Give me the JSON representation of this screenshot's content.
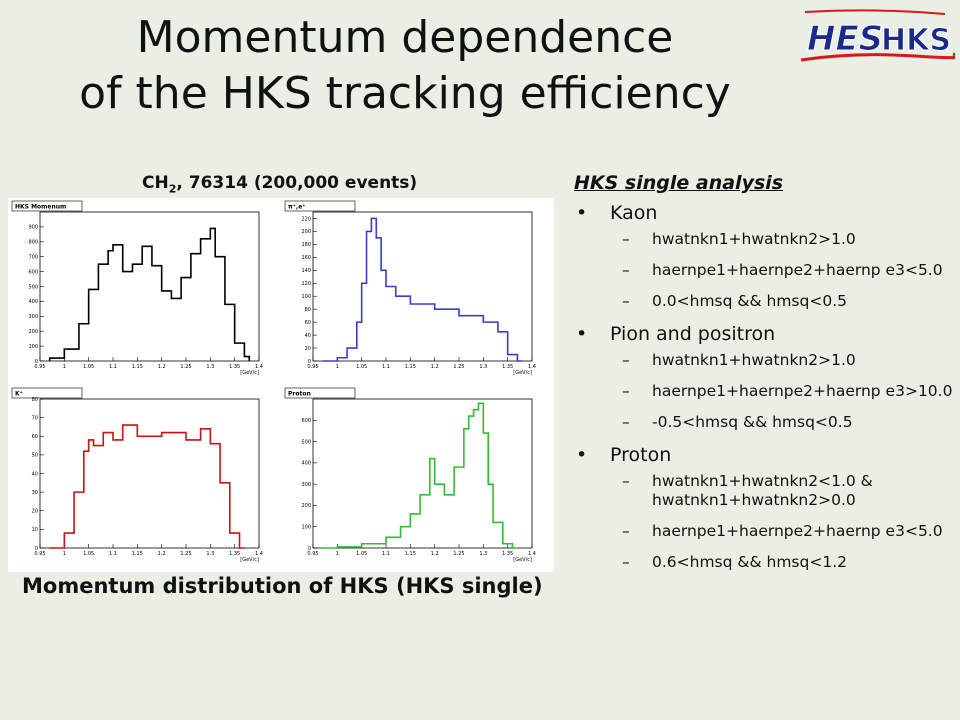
{
  "slide": {
    "title_line1": "Momentum dependence",
    "title_line2": "of the HKS tracking efficiency",
    "logo": {
      "hes": "HES",
      "hks": "HKS",
      "colors": {
        "hes": "#1a2a8c",
        "hks": "#1a2a8c",
        "underline": "#d81818"
      }
    },
    "left_header": {
      "main": "CH",
      "sub": "2",
      "rest": ", 76314 (200,000 events)"
    },
    "caption": "Momentum distribution of HKS (HKS single)"
  },
  "analysis": {
    "title": "HKS single analysis",
    "bullets": [
      {
        "label": "Kaon",
        "items": [
          "hwatnkn1+hwatnkn2>1.0",
          "haernpe1+haernpe2+haernp e3<5.0",
          "0.0<hmsq && hmsq<0.5"
        ]
      },
      {
        "label": "Pion and positron",
        "items": [
          "hwatnkn1+hwatnkn2>1.0",
          "haernpe1+haernpe2+haernp e3>10.0",
          "-0.5<hmsq && hmsq<0.5"
        ]
      },
      {
        "label": "Proton",
        "items": [
          "hwatnkn1+hwatnkn2<1.0 & hwatnkn1+hwatnkn2>0.0",
          "haernpe1+haernpe2+haernp e3<5.0",
          "0.6<hmsq && hmsq<1.2"
        ]
      }
    ]
  },
  "chart_data": [
    {
      "type": "line",
      "title": "HKS Momenum",
      "xlabel": "[GeV/c]",
      "color": "#000000",
      "xlim": [
        0.95,
        1.4
      ],
      "ylim": [
        0,
        1000
      ],
      "x_ticks": [
        "0.95",
        "1",
        "1.05",
        "1.1",
        "1.15",
        "1.2",
        "1.25",
        "1.3",
        "1.35",
        "1.4"
      ],
      "y_ticks": [
        0,
        100,
        200,
        300,
        400,
        500,
        600,
        700,
        800,
        900
      ],
      "x": [
        0.97,
        1.0,
        1.03,
        1.05,
        1.07,
        1.09,
        1.1,
        1.12,
        1.14,
        1.16,
        1.18,
        1.2,
        1.22,
        1.24,
        1.26,
        1.28,
        1.3,
        1.31,
        1.33,
        1.35,
        1.37
      ],
      "values": [
        20,
        80,
        250,
        480,
        650,
        740,
        780,
        600,
        650,
        770,
        640,
        470,
        420,
        560,
        720,
        820,
        890,
        700,
        380,
        120,
        30
      ]
    },
    {
      "type": "line",
      "title": "π⁺,e⁺",
      "xlabel": "[GeV/c]",
      "color": "#3b3bcc",
      "xlim": [
        0.95,
        1.4
      ],
      "ylim": [
        0,
        230
      ],
      "x_ticks": [
        "0.95",
        "1",
        "1.05",
        "1.1",
        "1.15",
        "1.2",
        "1.25",
        "1.3",
        "1.35",
        "1.4"
      ],
      "y_ticks": [
        0,
        20,
        40,
        60,
        80,
        100,
        120,
        140,
        160,
        180,
        200,
        220
      ],
      "x": [
        0.97,
        1.0,
        1.02,
        1.04,
        1.05,
        1.06,
        1.07,
        1.08,
        1.09,
        1.1,
        1.12,
        1.15,
        1.2,
        1.25,
        1.3,
        1.33,
        1.35,
        1.37
      ],
      "values": [
        0,
        5,
        20,
        60,
        120,
        200,
        220,
        190,
        140,
        115,
        100,
        88,
        80,
        70,
        60,
        45,
        10,
        0
      ]
    },
    {
      "type": "line",
      "title": "K⁺",
      "xlabel": "[GeV/c]",
      "color": "#cc1111",
      "xlim": [
        0.95,
        1.4
      ],
      "ylim": [
        0,
        80
      ],
      "x_ticks": [
        "0.95",
        "1",
        "1.05",
        "1.1",
        "1.15",
        "1.2",
        "1.25",
        "1.3",
        "1.35",
        "1.4"
      ],
      "y_ticks": [
        0,
        10,
        20,
        30,
        40,
        50,
        60,
        70,
        80
      ],
      "x": [
        0.97,
        1.0,
        1.02,
        1.04,
        1.05,
        1.06,
        1.08,
        1.1,
        1.12,
        1.15,
        1.2,
        1.25,
        1.28,
        1.3,
        1.32,
        1.34,
        1.36
      ],
      "values": [
        0,
        8,
        30,
        52,
        58,
        55,
        62,
        58,
        66,
        60,
        62,
        58,
        64,
        56,
        35,
        8,
        0
      ]
    },
    {
      "type": "line",
      "title": "Proton",
      "xlabel": "[GeV/c]",
      "color": "#33bb33",
      "xlim": [
        0.95,
        1.4
      ],
      "ylim": [
        0,
        700
      ],
      "x_ticks": [
        "0.95",
        "1",
        "1.05",
        "1.1",
        "1.15",
        "1.2",
        "1.25",
        "1.3",
        "1.35",
        "1.4"
      ],
      "y_ticks": [
        0,
        100,
        200,
        300,
        400,
        500,
        600
      ],
      "x": [
        0.97,
        1.0,
        1.05,
        1.1,
        1.13,
        1.15,
        1.17,
        1.19,
        1.2,
        1.22,
        1.24,
        1.26,
        1.27,
        1.28,
        1.29,
        1.3,
        1.31,
        1.32,
        1.34,
        1.36
      ],
      "values": [
        0,
        5,
        20,
        50,
        100,
        160,
        250,
        420,
        300,
        250,
        380,
        560,
        620,
        650,
        680,
        540,
        300,
        120,
        20,
        0
      ]
    }
  ]
}
